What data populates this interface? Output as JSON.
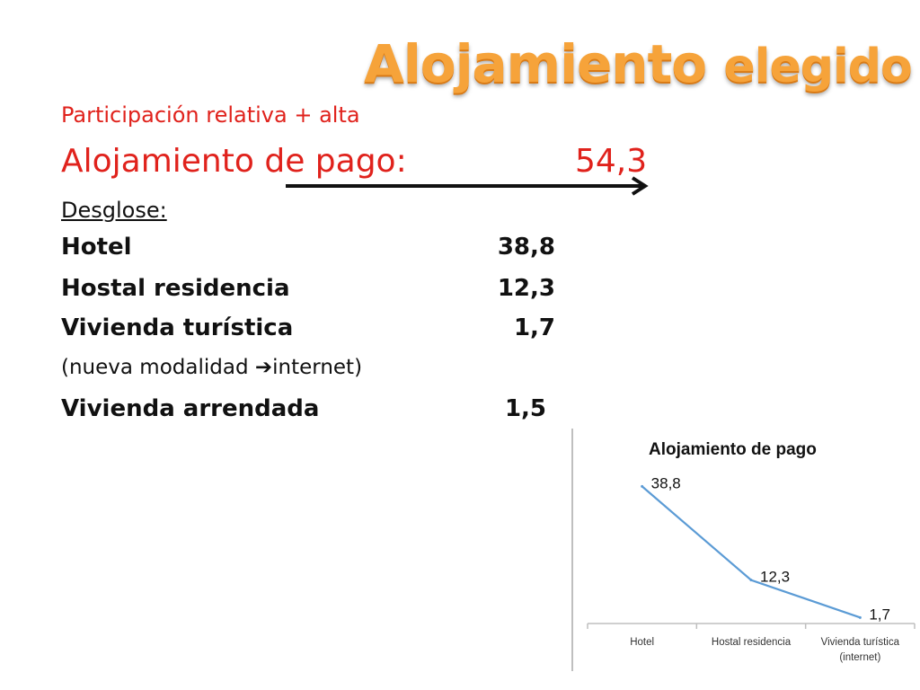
{
  "slide": {
    "title_main": "Alojamiento",
    "title_tail": "elegido",
    "subtitle": "Participación relativa + alta",
    "headline_label": "Alojamiento de pago:",
    "headline_value": "54,3",
    "breakdown_heading": "Desglose:",
    "rows": [
      {
        "label": "Hotel",
        "value": "38,8"
      },
      {
        "label": "Hostal residencia",
        "value": "12,3"
      },
      {
        "label": "Vivienda turística",
        "value": "1,7"
      },
      {
        "label": "Vivienda arrendada",
        "value": "1,5"
      }
    ],
    "note_prefix": "(nueva modalidad ",
    "note_arrow": "➔",
    "note_suffix": "internet)",
    "colors": {
      "title": "#f6a33a",
      "accent_red": "#e0221c",
      "text": "#111111",
      "line": "#5b9bd5"
    }
  },
  "chart_data": {
    "type": "line",
    "title": "Alojamiento de pago",
    "categories": [
      "Hotel",
      "Hostal residencia",
      "Vivienda turística (internet)"
    ],
    "category_lines": [
      [
        "Hotel"
      ],
      [
        "Hostal residencia"
      ],
      [
        "Vivienda turística",
        "(internet)"
      ]
    ],
    "values": [
      38.8,
      12.3,
      1.7
    ],
    "data_labels": [
      "38,8",
      "12,3",
      "1,7"
    ],
    "ylim": [
      0,
      45
    ],
    "grid": false,
    "legend": "none"
  }
}
